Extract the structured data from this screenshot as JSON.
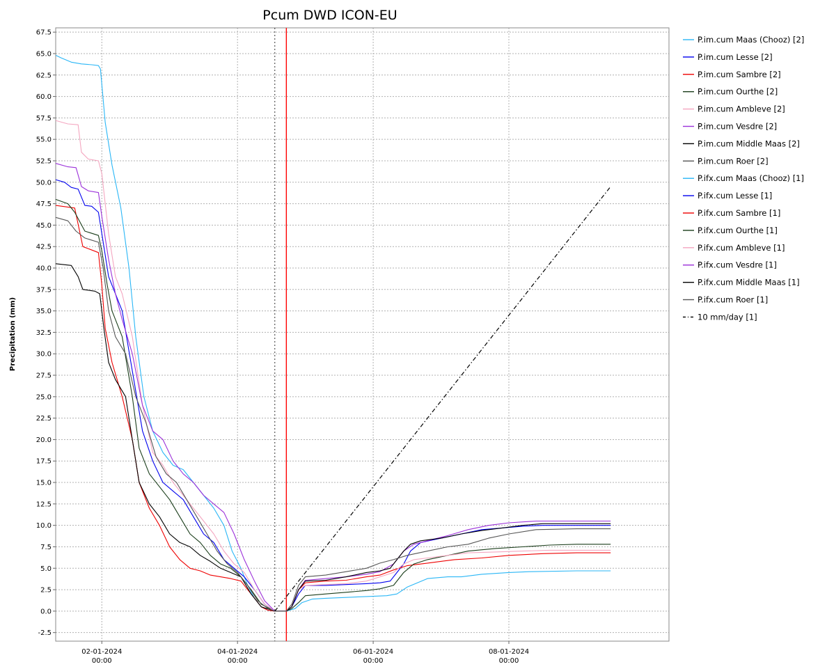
{
  "chart_data": {
    "type": "line",
    "title": "Pcum DWD ICON-EU",
    "ylabel": "Precipitation (mm)",
    "xlabel": "",
    "x_unit": "days from 01-01-2024 00:00",
    "xlim": [
      0.32,
      9.36
    ],
    "ylim": [
      -3.5,
      68.0
    ],
    "yticks": [
      -2.5,
      0.0,
      2.5,
      5.0,
      7.5,
      10.0,
      12.5,
      15.0,
      17.5,
      20.0,
      22.5,
      25.0,
      27.5,
      30.0,
      32.5,
      35.0,
      37.5,
      40.0,
      42.5,
      45.0,
      47.5,
      50.0,
      52.5,
      55.0,
      57.5,
      60.0,
      62.5,
      65.0,
      67.5
    ],
    "ytick_labels": [
      "-2.5",
      "0.0",
      "2.5",
      "5.0",
      "7.5",
      "10.0",
      "12.5",
      "15.0",
      "17.5",
      "20.0",
      "22.5",
      "25.0",
      "27.5",
      "30.0",
      "32.5",
      "35.0",
      "37.5",
      "40.0",
      "42.5",
      "45.0",
      "47.5",
      "50.0",
      "52.5",
      "55.0",
      "57.5",
      "60.0",
      "62.5",
      "65.0",
      "67.5"
    ],
    "xticks": [
      {
        "x": 1.0,
        "date": "02-01-2024",
        "time": "00:00"
      },
      {
        "x": 3.0,
        "date": "04-01-2024",
        "time": "00:00"
      },
      {
        "x": 5.0,
        "date": "06-01-2024",
        "time": "00:00"
      },
      {
        "x": 7.0,
        "date": "08-01-2024",
        "time": "00:00"
      }
    ],
    "grid": true,
    "legend_position": "right",
    "vertical_markers": [
      {
        "x": 3.55,
        "color": "#333333",
        "style": "dotted"
      },
      {
        "x": 3.72,
        "color": "#ff0000",
        "style": "solid"
      }
    ],
    "series": [
      {
        "name": "P.im.cum Maas (Chooz) [2]",
        "color": "#29b6f6",
        "x": [
          0.32,
          0.4,
          0.55,
          0.7,
          0.85,
          0.95,
          0.98,
          1.05,
          1.15,
          1.28,
          1.4,
          1.5,
          1.62,
          1.75,
          1.9,
          2.05,
          2.2,
          2.35,
          2.5,
          2.65,
          2.8,
          2.92,
          3.05,
          3.15,
          3.25,
          3.35,
          3.45,
          3.55
        ],
        "y": [
          64.8,
          64.5,
          64.0,
          63.8,
          63.7,
          63.6,
          63.2,
          57.0,
          52.0,
          47.0,
          40.0,
          32.0,
          25.0,
          21.0,
          18.5,
          17.0,
          16.5,
          15.0,
          13.5,
          12.0,
          10.0,
          7.0,
          5.0,
          3.0,
          1.5,
          0.5,
          0.1,
          0.0
        ]
      },
      {
        "name": "P.im.cum Lesse [2]",
        "color": "#0000ee",
        "x": [
          0.32,
          0.45,
          0.55,
          0.65,
          0.75,
          0.85,
          0.95,
          1.0,
          1.1,
          1.2,
          1.3,
          1.45,
          1.6,
          1.75,
          1.9,
          2.05,
          2.2,
          2.35,
          2.5,
          2.65,
          2.8,
          2.95,
          3.1,
          3.25,
          3.4,
          3.55
        ],
        "y": [
          50.3,
          50.0,
          49.4,
          49.2,
          47.3,
          47.2,
          46.5,
          44.0,
          39.0,
          37.0,
          35.0,
          28.0,
          21.0,
          17.5,
          15.0,
          14.0,
          13.0,
          11.0,
          9.0,
          8.0,
          6.0,
          5.0,
          4.0,
          2.5,
          0.8,
          0.0
        ]
      },
      {
        "name": "P.im.cum Sambre [2]",
        "color": "#ee0000",
        "x": [
          0.32,
          0.6,
          0.72,
          0.95,
          1.0,
          1.05,
          1.15,
          1.3,
          1.45,
          1.55,
          1.7,
          1.85,
          2.0,
          2.15,
          2.3,
          2.45,
          2.6,
          2.75,
          2.9,
          3.05,
          3.2,
          3.35,
          3.45,
          3.55
        ],
        "y": [
          47.3,
          47.0,
          42.5,
          41.8,
          38.0,
          33.0,
          29.0,
          25.0,
          20.0,
          15.0,
          12.0,
          10.0,
          7.5,
          6.0,
          5.0,
          4.7,
          4.2,
          4.0,
          3.8,
          3.5,
          2.0,
          0.5,
          0.1,
          0.0
        ]
      },
      {
        "name": "P.im.cum Ourthe [2]",
        "color": "#1a3d1a",
        "x": [
          0.32,
          0.5,
          0.6,
          0.75,
          0.95,
          1.0,
          1.08,
          1.15,
          1.3,
          1.45,
          1.55,
          1.7,
          1.85,
          2.0,
          2.15,
          2.3,
          2.45,
          2.6,
          2.75,
          2.9,
          3.05,
          3.2,
          3.35,
          3.55
        ],
        "y": [
          48.0,
          47.5,
          46.5,
          44.3,
          43.8,
          42.0,
          38.0,
          35.0,
          32.0,
          25.0,
          19.0,
          16.0,
          14.5,
          13.0,
          11.0,
          9.0,
          8.0,
          6.5,
          5.5,
          5.0,
          4.0,
          2.5,
          0.8,
          0.0
        ]
      },
      {
        "name": "P.im.cum Ambleve [2]",
        "color": "#f4a6c0",
        "x": [
          0.32,
          0.5,
          0.65,
          0.7,
          0.8,
          0.95,
          1.0,
          1.1,
          1.2,
          1.3,
          1.45,
          1.6,
          1.75,
          1.9,
          2.05,
          2.2,
          2.35,
          2.5,
          2.65,
          2.8,
          2.95,
          3.1,
          3.25,
          3.4,
          3.55
        ],
        "y": [
          57.2,
          56.8,
          56.7,
          53.5,
          52.7,
          52.5,
          51.0,
          44.0,
          39.0,
          37.0,
          32.0,
          24.0,
          18.5,
          17.0,
          15.0,
          13.5,
          12.0,
          10.5,
          9.0,
          7.0,
          5.5,
          4.5,
          2.5,
          0.8,
          0.0
        ]
      },
      {
        "name": "P.im.cum Vesdre [2]",
        "color": "#9b30d9",
        "x": [
          0.32,
          0.5,
          0.62,
          0.7,
          0.8,
          0.95,
          1.0,
          1.1,
          1.2,
          1.3,
          1.45,
          1.6,
          1.75,
          1.9,
          2.05,
          2.2,
          2.35,
          2.5,
          2.65,
          2.8,
          2.95,
          3.1,
          3.25,
          3.4,
          3.55
        ],
        "y": [
          52.2,
          51.8,
          51.7,
          49.5,
          49.0,
          48.8,
          46.0,
          41.0,
          37.0,
          34.0,
          30.0,
          24.0,
          21.0,
          20.0,
          17.5,
          16.0,
          15.0,
          13.5,
          12.5,
          11.5,
          9.0,
          6.0,
          3.5,
          1.2,
          0.0
        ]
      },
      {
        "name": "P.im.cum Middle Maas [2]",
        "color": "#000000",
        "x": [
          0.32,
          0.55,
          0.65,
          0.72,
          0.9,
          0.97,
          1.03,
          1.1,
          1.2,
          1.35,
          1.45,
          1.55,
          1.7,
          1.85,
          2.0,
          2.15,
          2.3,
          2.45,
          2.6,
          2.75,
          2.9,
          3.05,
          3.2,
          3.35,
          3.55
        ],
        "y": [
          40.5,
          40.3,
          39.0,
          37.5,
          37.3,
          37.0,
          33.0,
          29.0,
          27.0,
          25.0,
          20.0,
          15.0,
          12.5,
          11.0,
          9.0,
          8.0,
          7.5,
          6.5,
          5.8,
          5.0,
          4.5,
          4.0,
          2.0,
          0.5,
          0.0
        ]
      },
      {
        "name": "P.im.cum Roer [2]",
        "color": "#555555",
        "x": [
          0.32,
          0.5,
          0.62,
          0.75,
          0.95,
          1.02,
          1.1,
          1.2,
          1.35,
          1.5,
          1.65,
          1.8,
          1.95,
          2.1,
          2.25,
          2.4,
          2.55,
          2.7,
          2.85,
          3.0,
          3.15,
          3.3,
          3.45,
          3.55
        ],
        "y": [
          45.9,
          45.5,
          44.3,
          43.5,
          43.0,
          40.0,
          35.0,
          32.0,
          30.0,
          25.0,
          22.0,
          18.0,
          16.0,
          15.0,
          13.0,
          11.0,
          9.0,
          7.0,
          5.5,
          4.5,
          3.0,
          1.2,
          0.3,
          0.0
        ]
      },
      {
        "name": "P.ifx.cum Maas (Chooz) [1]",
        "color": "#29b6f6",
        "x": [
          3.55,
          3.72,
          3.85,
          3.95,
          4.1,
          4.3,
          4.6,
          4.9,
          5.2,
          5.35,
          5.5,
          5.8,
          6.1,
          6.3,
          6.6,
          7.0,
          7.3,
          8.0,
          8.5
        ],
        "y": [
          0.0,
          0.0,
          0.3,
          1.0,
          1.4,
          1.5,
          1.6,
          1.7,
          1.8,
          2.0,
          2.8,
          3.8,
          4.0,
          4.0,
          4.3,
          4.5,
          4.6,
          4.7,
          4.7
        ]
      },
      {
        "name": "P.ifx.cum Lesse [1]",
        "color": "#0000ee",
        "x": [
          3.55,
          3.72,
          3.8,
          3.9,
          4.0,
          4.3,
          4.6,
          4.9,
          5.1,
          5.25,
          5.35,
          5.45,
          5.55,
          5.7,
          6.0,
          6.3,
          6.6,
          6.9,
          7.2,
          7.5,
          8.0,
          8.5
        ],
        "y": [
          0.0,
          0.0,
          0.5,
          2.0,
          3.0,
          3.0,
          3.1,
          3.2,
          3.3,
          3.5,
          4.5,
          5.5,
          7.0,
          8.0,
          8.5,
          9.0,
          9.5,
          9.7,
          9.9,
          10.0,
          10.0,
          10.0
        ]
      },
      {
        "name": "P.ifx.cum Sambre [1]",
        "color": "#ee0000",
        "x": [
          3.55,
          3.72,
          3.8,
          3.9,
          4.0,
          4.3,
          4.6,
          4.9,
          5.1,
          5.3,
          5.5,
          5.8,
          6.2,
          6.6,
          7.0,
          7.5,
          8.0,
          8.5
        ],
        "y": [
          0.0,
          0.0,
          0.5,
          2.5,
          3.3,
          3.5,
          3.6,
          4.0,
          4.2,
          4.8,
          5.3,
          5.6,
          6.0,
          6.2,
          6.5,
          6.7,
          6.8,
          6.8
        ]
      },
      {
        "name": "P.ifx.cum Ourthe [1]",
        "color": "#1a3d1a",
        "x": [
          3.55,
          3.72,
          3.8,
          3.9,
          4.0,
          4.3,
          4.6,
          4.9,
          5.1,
          5.3,
          5.45,
          5.6,
          5.8,
          6.1,
          6.4,
          6.8,
          7.2,
          7.6,
          8.0,
          8.5
        ],
        "y": [
          0.0,
          0.0,
          0.3,
          1.0,
          1.8,
          2.0,
          2.2,
          2.4,
          2.6,
          3.0,
          4.5,
          5.5,
          6.0,
          6.5,
          7.0,
          7.3,
          7.5,
          7.7,
          7.8,
          7.8
        ]
      },
      {
        "name": "P.ifx.cum Ambleve [1]",
        "color": "#f4a6c0",
        "x": [
          3.55,
          3.72,
          3.8,
          3.9,
          4.0,
          4.3,
          4.6,
          4.9,
          5.1,
          5.3,
          5.45,
          5.6,
          5.8,
          6.1,
          6.4,
          6.8,
          7.2,
          7.6,
          8.0,
          8.5
        ],
        "y": [
          0.0,
          0.0,
          0.5,
          2.5,
          3.0,
          3.1,
          3.2,
          3.5,
          4.0,
          4.5,
          5.5,
          6.0,
          6.2,
          6.5,
          6.8,
          6.9,
          7.0,
          7.1,
          7.1,
          7.1
        ]
      },
      {
        "name": "P.ifx.cum Vesdre [1]",
        "color": "#9b30d9",
        "x": [
          3.55,
          3.72,
          3.8,
          3.9,
          4.0,
          4.3,
          4.6,
          4.9,
          5.1,
          5.3,
          5.45,
          5.6,
          5.8,
          6.1,
          6.4,
          6.7,
          7.0,
          7.4,
          8.0,
          8.5
        ],
        "y": [
          0.0,
          0.0,
          0.5,
          2.5,
          3.6,
          3.8,
          4.0,
          4.3,
          4.6,
          5.5,
          7.0,
          7.8,
          8.2,
          8.8,
          9.5,
          10.0,
          10.3,
          10.5,
          10.5,
          10.5
        ]
      },
      {
        "name": "P.ifx.cum Middle Maas [1]",
        "color": "#000000",
        "x": [
          3.55,
          3.72,
          3.8,
          3.9,
          4.0,
          4.3,
          4.6,
          4.9,
          5.1,
          5.25,
          5.35,
          5.45,
          5.55,
          5.7,
          6.0,
          6.3,
          6.6,
          6.9,
          7.2,
          7.5,
          8.0,
          8.5
        ],
        "y": [
          0.0,
          0.0,
          0.5,
          2.5,
          3.5,
          3.6,
          4.0,
          4.5,
          4.7,
          5.0,
          6.0,
          7.0,
          7.8,
          8.2,
          8.5,
          9.0,
          9.4,
          9.7,
          10.0,
          10.2,
          10.2,
          10.2
        ]
      },
      {
        "name": "P.ifx.cum Roer [1]",
        "color": "#555555",
        "x": [
          3.55,
          3.72,
          3.8,
          3.9,
          4.0,
          4.3,
          4.6,
          4.9,
          5.1,
          5.3,
          5.5,
          5.8,
          6.1,
          6.4,
          6.7,
          7.0,
          7.4,
          8.0,
          8.5
        ],
        "y": [
          0.0,
          0.0,
          0.8,
          3.0,
          4.0,
          4.2,
          4.6,
          5.0,
          5.6,
          6.0,
          6.5,
          7.0,
          7.5,
          7.8,
          8.5,
          9.0,
          9.5,
          9.6,
          9.6
        ]
      },
      {
        "name": "10 mm/day [1]",
        "color": "#000000",
        "dash": "dashdot",
        "x": [
          3.55,
          8.5
        ],
        "y": [
          0.0,
          49.5
        ]
      }
    ]
  }
}
